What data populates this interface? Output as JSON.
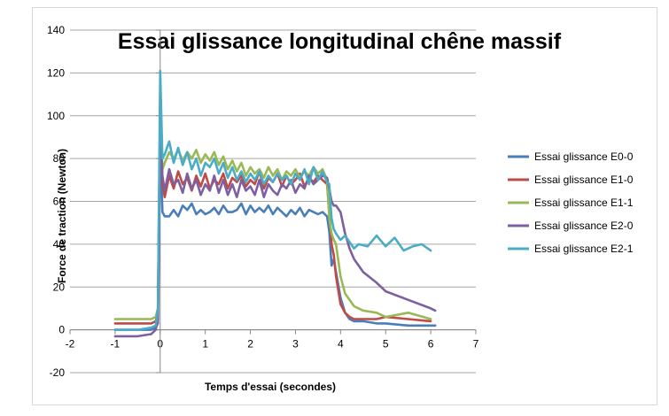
{
  "chart_data": {
    "type": "line",
    "title": "Essai glissance longitudinal chêne massif",
    "xlabel": "Temps d'essai (secondes)",
    "ylabel": "Force de traction (Newton)",
    "xlim": [
      -2,
      7
    ],
    "ylim": [
      -20,
      140
    ],
    "xticks": [
      "-2",
      "-1",
      "0",
      "1",
      "2",
      "3",
      "4",
      "5",
      "6",
      "7"
    ],
    "yticks": [
      "-20",
      "0",
      "20",
      "40",
      "60",
      "80",
      "100",
      "120",
      "140"
    ],
    "grid": "horizontal",
    "legend_position": "right",
    "series": [
      {
        "name": "Essai glissance E0-0",
        "color": "#4a7ebb",
        "x": [
          -1,
          -0.5,
          -0.2,
          -0.1,
          -0.05,
          0,
          0.05,
          0.1,
          0.2,
          0.3,
          0.4,
          0.5,
          0.6,
          0.7,
          0.8,
          0.9,
          1.0,
          1.1,
          1.2,
          1.3,
          1.4,
          1.5,
          1.6,
          1.7,
          1.8,
          1.9,
          2.0,
          2.1,
          2.2,
          2.3,
          2.4,
          2.5,
          2.6,
          2.7,
          2.8,
          2.9,
          3.0,
          3.1,
          3.2,
          3.3,
          3.4,
          3.5,
          3.6,
          3.7,
          3.75,
          3.8,
          3.85,
          3.9,
          4.0,
          4.1,
          4.2,
          4.3,
          4.5,
          4.8,
          5.0,
          5.5,
          6.0,
          6.1
        ],
        "y": [
          0,
          0,
          0,
          1,
          3,
          90,
          55,
          53,
          53,
          56,
          53,
          58,
          56,
          59,
          54,
          56,
          54,
          55,
          57,
          54,
          58,
          55,
          55,
          56,
          59,
          54,
          58,
          55,
          57,
          55,
          58,
          54,
          57,
          55,
          53,
          56,
          54,
          57,
          53,
          56,
          55,
          54,
          55,
          53,
          46,
          30,
          33,
          27,
          15,
          8,
          5,
          4,
          4,
          3,
          3,
          2,
          2,
          2
        ]
      },
      {
        "name": "Essai glissance E1-0",
        "color": "#be4b48",
        "x": [
          -1,
          -0.5,
          -0.2,
          -0.1,
          -0.05,
          0,
          0.05,
          0.1,
          0.2,
          0.3,
          0.4,
          0.5,
          0.6,
          0.7,
          0.8,
          0.9,
          1.0,
          1.1,
          1.2,
          1.3,
          1.4,
          1.5,
          1.6,
          1.7,
          1.8,
          1.9,
          2.0,
          2.1,
          2.2,
          2.3,
          2.4,
          2.5,
          2.6,
          2.7,
          2.8,
          2.9,
          3.0,
          3.1,
          3.2,
          3.3,
          3.4,
          3.5,
          3.6,
          3.7,
          3.75,
          3.8,
          3.85,
          3.9,
          4.0,
          4.1,
          4.2,
          4.3,
          4.5,
          4.8,
          5.0,
          5.5,
          6.0
        ],
        "y": [
          3,
          3,
          3,
          4,
          8,
          110,
          68,
          62,
          72,
          66,
          74,
          68,
          71,
          65,
          72,
          67,
          73,
          66,
          70,
          68,
          73,
          66,
          71,
          69,
          72,
          67,
          70,
          68,
          74,
          66,
          71,
          69,
          73,
          67,
          72,
          68,
          70,
          73,
          67,
          71,
          69,
          72,
          70,
          68,
          55,
          40,
          35,
          25,
          12,
          8,
          6,
          5,
          5,
          5,
          6,
          5,
          4
        ]
      },
      {
        "name": "Essai glissance E1-1",
        "color": "#98b954",
        "x": [
          -1,
          -0.5,
          -0.2,
          -0.1,
          -0.05,
          0,
          0.05,
          0.1,
          0.2,
          0.3,
          0.4,
          0.5,
          0.6,
          0.7,
          0.8,
          0.9,
          1.0,
          1.1,
          1.2,
          1.3,
          1.4,
          1.5,
          1.6,
          1.7,
          1.8,
          1.9,
          2.0,
          2.1,
          2.2,
          2.3,
          2.4,
          2.5,
          2.6,
          2.7,
          2.8,
          2.9,
          3.0,
          3.1,
          3.2,
          3.3,
          3.4,
          3.5,
          3.6,
          3.7,
          3.75,
          3.8,
          3.85,
          3.9,
          4.0,
          4.1,
          4.2,
          4.3,
          4.5,
          4.8,
          5.0,
          5.5,
          6.0
        ],
        "y": [
          5,
          5,
          5,
          6,
          10,
          105,
          75,
          78,
          83,
          80,
          84,
          79,
          83,
          80,
          84,
          78,
          82,
          79,
          83,
          77,
          81,
          75,
          79,
          74,
          78,
          72,
          76,
          73,
          75,
          71,
          76,
          72,
          75,
          70,
          74,
          72,
          75,
          71,
          74,
          72,
          76,
          73,
          75,
          70,
          52,
          45,
          42,
          40,
          25,
          17,
          14,
          11,
          9,
          8,
          6,
          8,
          5
        ]
      },
      {
        "name": "Essai glissance E2-0",
        "color": "#7d60a0",
        "x": [
          -1,
          -0.5,
          -0.2,
          -0.1,
          -0.05,
          0,
          0.05,
          0.1,
          0.2,
          0.3,
          0.4,
          0.5,
          0.6,
          0.7,
          0.8,
          0.9,
          1.0,
          1.1,
          1.2,
          1.3,
          1.4,
          1.5,
          1.6,
          1.7,
          1.8,
          1.9,
          2.0,
          2.1,
          2.2,
          2.3,
          2.4,
          2.5,
          2.6,
          2.7,
          2.8,
          2.9,
          3.0,
          3.1,
          3.2,
          3.3,
          3.4,
          3.5,
          3.6,
          3.7,
          3.75,
          3.8,
          3.85,
          3.9,
          4.0,
          4.1,
          4.2,
          4.3,
          4.5,
          4.8,
          5.0,
          5.5,
          6.0,
          6.1
        ],
        "y": [
          -3,
          -3,
          -2,
          0,
          5,
          95,
          72,
          65,
          75,
          68,
          70,
          64,
          73,
          66,
          70,
          63,
          68,
          65,
          72,
          64,
          70,
          63,
          68,
          62,
          70,
          65,
          67,
          63,
          70,
          62,
          68,
          65,
          63,
          68,
          66,
          70,
          64,
          68,
          66,
          72,
          68,
          70,
          72,
          71,
          66,
          60,
          58,
          58,
          55,
          45,
          38,
          33,
          27,
          22,
          18,
          14,
          10,
          9
        ]
      },
      {
        "name": "Essai glissance E2-1",
        "color": "#4bacc6",
        "x": [
          -1,
          -0.5,
          -0.2,
          -0.1,
          -0.05,
          0,
          0.05,
          0.1,
          0.2,
          0.3,
          0.4,
          0.5,
          0.6,
          0.7,
          0.8,
          0.9,
          1.0,
          1.1,
          1.2,
          1.3,
          1.4,
          1.5,
          1.6,
          1.7,
          1.8,
          1.9,
          2.0,
          2.1,
          2.2,
          2.3,
          2.4,
          2.5,
          2.6,
          2.7,
          2.8,
          2.9,
          3.0,
          3.1,
          3.2,
          3.3,
          3.4,
          3.5,
          3.6,
          3.7,
          3.75,
          3.8,
          3.85,
          3.9,
          4.0,
          4.1,
          4.2,
          4.3,
          4.4,
          4.6,
          4.8,
          5.0,
          5.2,
          5.4,
          5.6,
          5.8,
          6.0
        ],
        "y": [
          0,
          0,
          1,
          2,
          10,
          121,
          80,
          82,
          88,
          78,
          85,
          77,
          83,
          75,
          80,
          72,
          78,
          76,
          80,
          73,
          78,
          71,
          76,
          70,
          74,
          69,
          73,
          70,
          74,
          68,
          72,
          69,
          73,
          70,
          72,
          68,
          73,
          70,
          75,
          68,
          76,
          70,
          74,
          69,
          68,
          52,
          47,
          45,
          42,
          44,
          41,
          38,
          40,
          39,
          44,
          39,
          43,
          37,
          39,
          40,
          37
        ]
      }
    ]
  }
}
